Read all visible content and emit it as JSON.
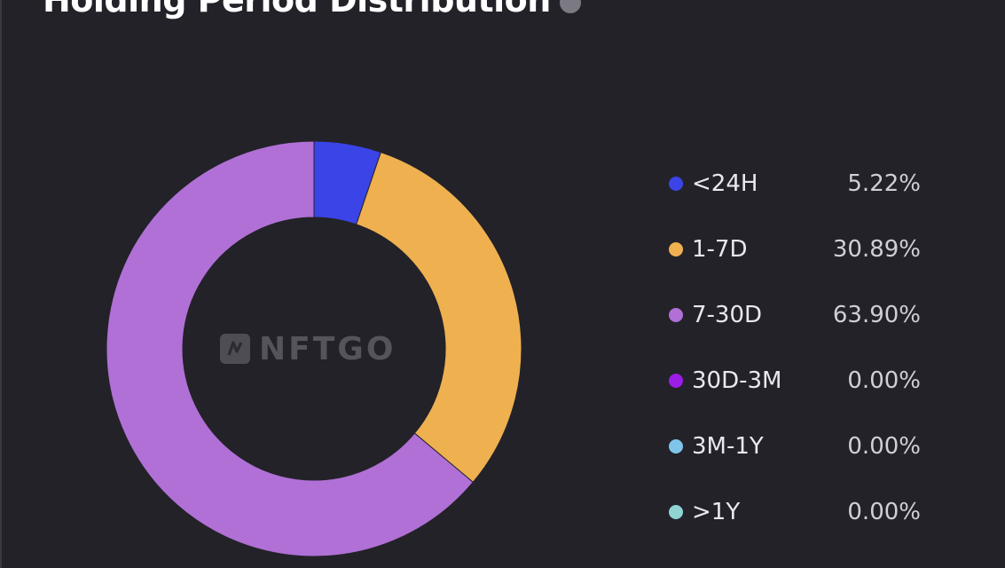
{
  "header": {
    "title": "Holding Period Distribution",
    "info_icon": "info-icon"
  },
  "watermark": {
    "logo_icon": "nftgo-logo-icon",
    "text": "NFTGO"
  },
  "chart_data": {
    "type": "pie",
    "variant": "donut",
    "title": "Holding Period Distribution",
    "categories": [
      "<24H",
      "1-7D",
      "7-30D",
      "30D-3M",
      "3M-1Y",
      ">1Y"
    ],
    "values": [
      5.22,
      30.89,
      63.9,
      0.0,
      0.0,
      0.0
    ],
    "value_labels": [
      "5.22%",
      "30.89%",
      "63.90%",
      "0.00%",
      "0.00%",
      "0.00%"
    ],
    "colors": [
      "#3b44e6",
      "#efb050",
      "#b070d6",
      "#9b1de6",
      "#7fc4ea",
      "#8fd3d3"
    ],
    "unit": "%",
    "legend": "right"
  }
}
